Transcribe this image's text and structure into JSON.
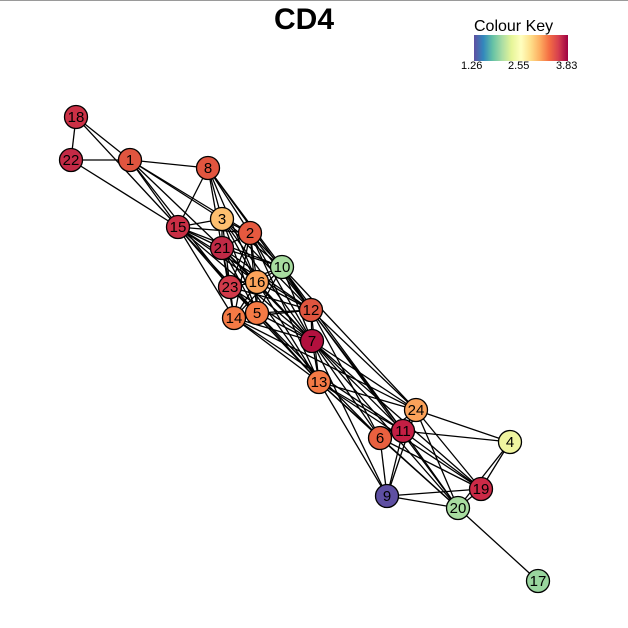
{
  "title": "CD4",
  "colour_key": {
    "title": "Colour Key",
    "ticks": [
      "1.26",
      "2.55",
      "3.83"
    ],
    "gradient": [
      "#5e4fa2",
      "#3288bd",
      "#66c2a5",
      "#abdda4",
      "#e6f598",
      "#ffffbf",
      "#fee08b",
      "#fdae61",
      "#f46d43",
      "#d53e4f",
      "#9e0142"
    ]
  },
  "nodes": [
    {
      "id": "1",
      "color": "#e0553f"
    },
    {
      "id": "2",
      "color": "#e6593f"
    },
    {
      "id": "3",
      "color": "#fdbf6f"
    },
    {
      "id": "4",
      "color": "#f0f5a0"
    },
    {
      "id": "5",
      "color": "#f47a45"
    },
    {
      "id": "6",
      "color": "#e8603f"
    },
    {
      "id": "7",
      "color": "#b2103e"
    },
    {
      "id": "8",
      "color": "#e2553f"
    },
    {
      "id": "9",
      "color": "#5e4fa2"
    },
    {
      "id": "10",
      "color": "#a8dca0"
    },
    {
      "id": "11",
      "color": "#c41f44"
    },
    {
      "id": "12",
      "color": "#e0553f"
    },
    {
      "id": "13",
      "color": "#f47a45"
    },
    {
      "id": "14",
      "color": "#f47a45"
    },
    {
      "id": "15",
      "color": "#c92f45"
    },
    {
      "id": "16",
      "color": "#fba25a"
    },
    {
      "id": "17",
      "color": "#99d59e"
    },
    {
      "id": "18",
      "color": "#cc3146"
    },
    {
      "id": "19",
      "color": "#cc2a47"
    },
    {
      "id": "20",
      "color": "#a8dca0"
    },
    {
      "id": "21",
      "color": "#c02a46"
    },
    {
      "id": "22",
      "color": "#c42a46"
    },
    {
      "id": "23",
      "color": "#d23a4a"
    },
    {
      "id": "24",
      "color": "#fba25a"
    }
  ],
  "edges": [
    [
      "18",
      "22"
    ],
    [
      "18",
      "1"
    ],
    [
      "18",
      "15"
    ],
    [
      "22",
      "1"
    ],
    [
      "22",
      "15"
    ],
    [
      "1",
      "8"
    ],
    [
      "1",
      "15"
    ],
    [
      "1",
      "3"
    ],
    [
      "1",
      "21"
    ],
    [
      "1",
      "2"
    ],
    [
      "1",
      "23"
    ],
    [
      "8",
      "15"
    ],
    [
      "8",
      "3"
    ],
    [
      "8",
      "2"
    ],
    [
      "8",
      "21"
    ],
    [
      "8",
      "10"
    ],
    [
      "8",
      "16"
    ],
    [
      "8",
      "12"
    ],
    [
      "15",
      "3"
    ],
    [
      "15",
      "2"
    ],
    [
      "15",
      "21"
    ],
    [
      "15",
      "23"
    ],
    [
      "15",
      "16"
    ],
    [
      "15",
      "5"
    ],
    [
      "15",
      "14"
    ],
    [
      "15",
      "12"
    ],
    [
      "15",
      "7"
    ],
    [
      "15",
      "10"
    ],
    [
      "3",
      "2"
    ],
    [
      "3",
      "21"
    ],
    [
      "3",
      "23"
    ],
    [
      "3",
      "16"
    ],
    [
      "3",
      "10"
    ],
    [
      "3",
      "5"
    ],
    [
      "3",
      "12"
    ],
    [
      "3",
      "7"
    ],
    [
      "2",
      "21"
    ],
    [
      "2",
      "10"
    ],
    [
      "2",
      "16"
    ],
    [
      "2",
      "23"
    ],
    [
      "2",
      "5"
    ],
    [
      "2",
      "14"
    ],
    [
      "2",
      "12"
    ],
    [
      "2",
      "7"
    ],
    [
      "2",
      "13"
    ],
    [
      "21",
      "23"
    ],
    [
      "21",
      "16"
    ],
    [
      "21",
      "10"
    ],
    [
      "21",
      "5"
    ],
    [
      "21",
      "14"
    ],
    [
      "21",
      "12"
    ],
    [
      "21",
      "7"
    ],
    [
      "21",
      "13"
    ],
    [
      "10",
      "16"
    ],
    [
      "10",
      "23"
    ],
    [
      "10",
      "5"
    ],
    [
      "10",
      "12"
    ],
    [
      "10",
      "7"
    ],
    [
      "10",
      "14"
    ],
    [
      "10",
      "24"
    ],
    [
      "10",
      "11"
    ],
    [
      "16",
      "23"
    ],
    [
      "16",
      "5"
    ],
    [
      "16",
      "14"
    ],
    [
      "16",
      "12"
    ],
    [
      "16",
      "7"
    ],
    [
      "16",
      "13"
    ],
    [
      "23",
      "14"
    ],
    [
      "23",
      "5"
    ],
    [
      "23",
      "12"
    ],
    [
      "23",
      "7"
    ],
    [
      "23",
      "13"
    ],
    [
      "14",
      "5"
    ],
    [
      "14",
      "12"
    ],
    [
      "14",
      "7"
    ],
    [
      "14",
      "13"
    ],
    [
      "14",
      "24"
    ],
    [
      "14",
      "11"
    ],
    [
      "5",
      "12"
    ],
    [
      "5",
      "7"
    ],
    [
      "5",
      "13"
    ],
    [
      "5",
      "6"
    ],
    [
      "12",
      "7"
    ],
    [
      "12",
      "13"
    ],
    [
      "12",
      "24"
    ],
    [
      "12",
      "11"
    ],
    [
      "12",
      "6"
    ],
    [
      "12",
      "20"
    ],
    [
      "7",
      "13"
    ],
    [
      "7",
      "24"
    ],
    [
      "7",
      "11"
    ],
    [
      "7",
      "6"
    ],
    [
      "7",
      "9"
    ],
    [
      "7",
      "19"
    ],
    [
      "7",
      "20"
    ],
    [
      "13",
      "24"
    ],
    [
      "13",
      "11"
    ],
    [
      "13",
      "6"
    ],
    [
      "13",
      "9"
    ],
    [
      "13",
      "19"
    ],
    [
      "13",
      "20"
    ],
    [
      "24",
      "11"
    ],
    [
      "24",
      "6"
    ],
    [
      "24",
      "4"
    ],
    [
      "24",
      "19"
    ],
    [
      "24",
      "20"
    ],
    [
      "24",
      "9"
    ],
    [
      "6",
      "11"
    ],
    [
      "6",
      "9"
    ],
    [
      "6",
      "20"
    ],
    [
      "6",
      "19"
    ],
    [
      "11",
      "9"
    ],
    [
      "11",
      "4"
    ],
    [
      "11",
      "19"
    ],
    [
      "11",
      "20"
    ],
    [
      "4",
      "19"
    ],
    [
      "4",
      "20"
    ],
    [
      "19",
      "20"
    ],
    [
      "19",
      "9"
    ],
    [
      "20",
      "9"
    ],
    [
      "20",
      "17"
    ]
  ]
}
